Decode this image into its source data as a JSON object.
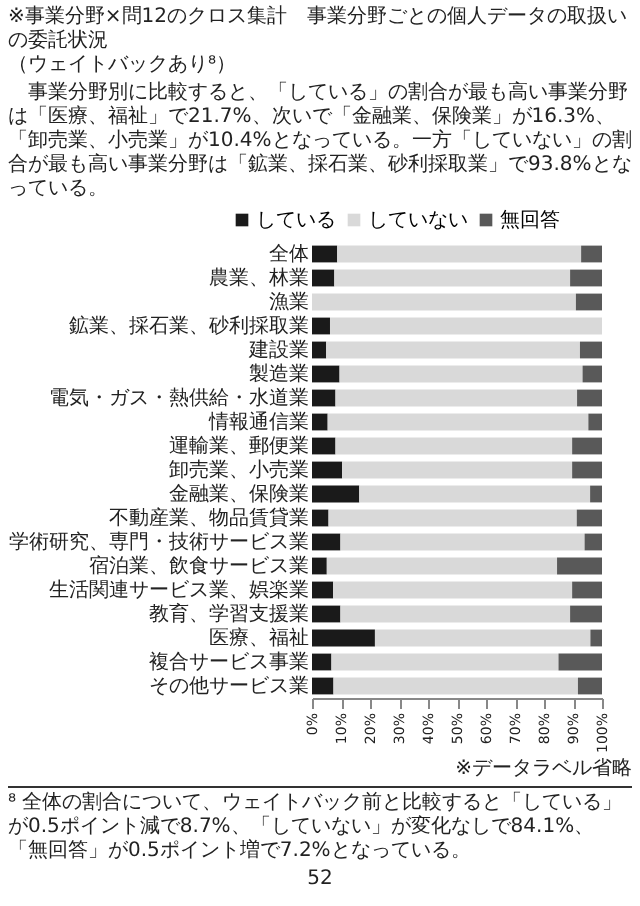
{
  "chart_data": {
    "type": "bar",
    "orientation": "horizontal",
    "stacked": true,
    "title": "※事業分野×問12のクロス集計　事業分野ごとの個人データの取扱いの委託状況",
    "subtitle": "（ウェイトバックあり⁸）",
    "categories": [
      "全体",
      "農業、林業",
      "漁業",
      "鉱業、採石業、砂利採取業",
      "建設業",
      "製造業",
      "電気・ガス・熱供給・水道業",
      "情報通信業",
      "運輸業、郵便業",
      "卸売業、小売業",
      "金融業、保険業",
      "不動産業、物品賃貸業",
      "学術研究、専門・技術サービス業",
      "宿泊業、飲食サービス業",
      "生活関連サービス業、娯楽業",
      "教育、学習支援業",
      "医療、福祉",
      "複合サービス事業",
      "その他サービス業"
    ],
    "series": [
      {
        "name": "している",
        "color": "#1a1a1a",
        "values": [
          8.7,
          7.7,
          0,
          6.2,
          4.9,
          9.5,
          8.1,
          5.4,
          8.1,
          10.4,
          16.3,
          5.7,
          9.8,
          5.1,
          7.3,
          9.8,
          21.7,
          6.7,
          7.4
        ]
      },
      {
        "name": "していない",
        "color": "#d9d9d9",
        "values": [
          84.1,
          81.3,
          91,
          93.8,
          87.5,
          83.8,
          83.3,
          89.9,
          81.6,
          79.3,
          79.6,
          85.6,
          84.2,
          79.4,
          82.4,
          79.2,
          74.3,
          78.3,
          84.3
        ]
      },
      {
        "name": "無回答",
        "color": "#595959",
        "values": [
          7.2,
          11,
          9,
          0,
          7.6,
          6.7,
          8.6,
          4.7,
          10.3,
          10.3,
          4.1,
          8.7,
          6,
          15.5,
          10.3,
          11,
          4,
          15,
          8.3
        ]
      }
    ],
    "xlim": [
      0,
      100
    ],
    "xticks": [
      {
        "value": 0,
        "label": "0%"
      },
      {
        "value": 10,
        "label": "10%"
      },
      {
        "value": 20,
        "label": "20%"
      },
      {
        "value": 30,
        "label": "30%"
      },
      {
        "value": 40,
        "label": "40%"
      },
      {
        "value": 50,
        "label": "50%"
      },
      {
        "value": 60,
        "label": "60%"
      },
      {
        "value": 70,
        "label": "70%"
      },
      {
        "value": 80,
        "label": "80%"
      },
      {
        "value": 90,
        "label": "90%"
      },
      {
        "value": 100,
        "label": "100%"
      }
    ],
    "legend": "top",
    "annotations": [
      "事業分野別に比較すると、「している」の割合が最も高い事業分野は「医療、福祉」で21.7%、次いで「金融業、保険業」が16.3%、「卸売業、小売業」が10.4%となっている。一方「していない」の割合が最も高い事業分野は「鉱業、採石業、砂利採取業」で93.8%となっている。",
      "※データラベル省略",
      "⁸ 全体の割合について、ウェイトバック前と比較すると「している」が0.5ポイント減で8.7%、「していない」が変化なしで84.1%、「無回答」が0.5ポイント増で7.2%となっている。",
      "52"
    ]
  }
}
